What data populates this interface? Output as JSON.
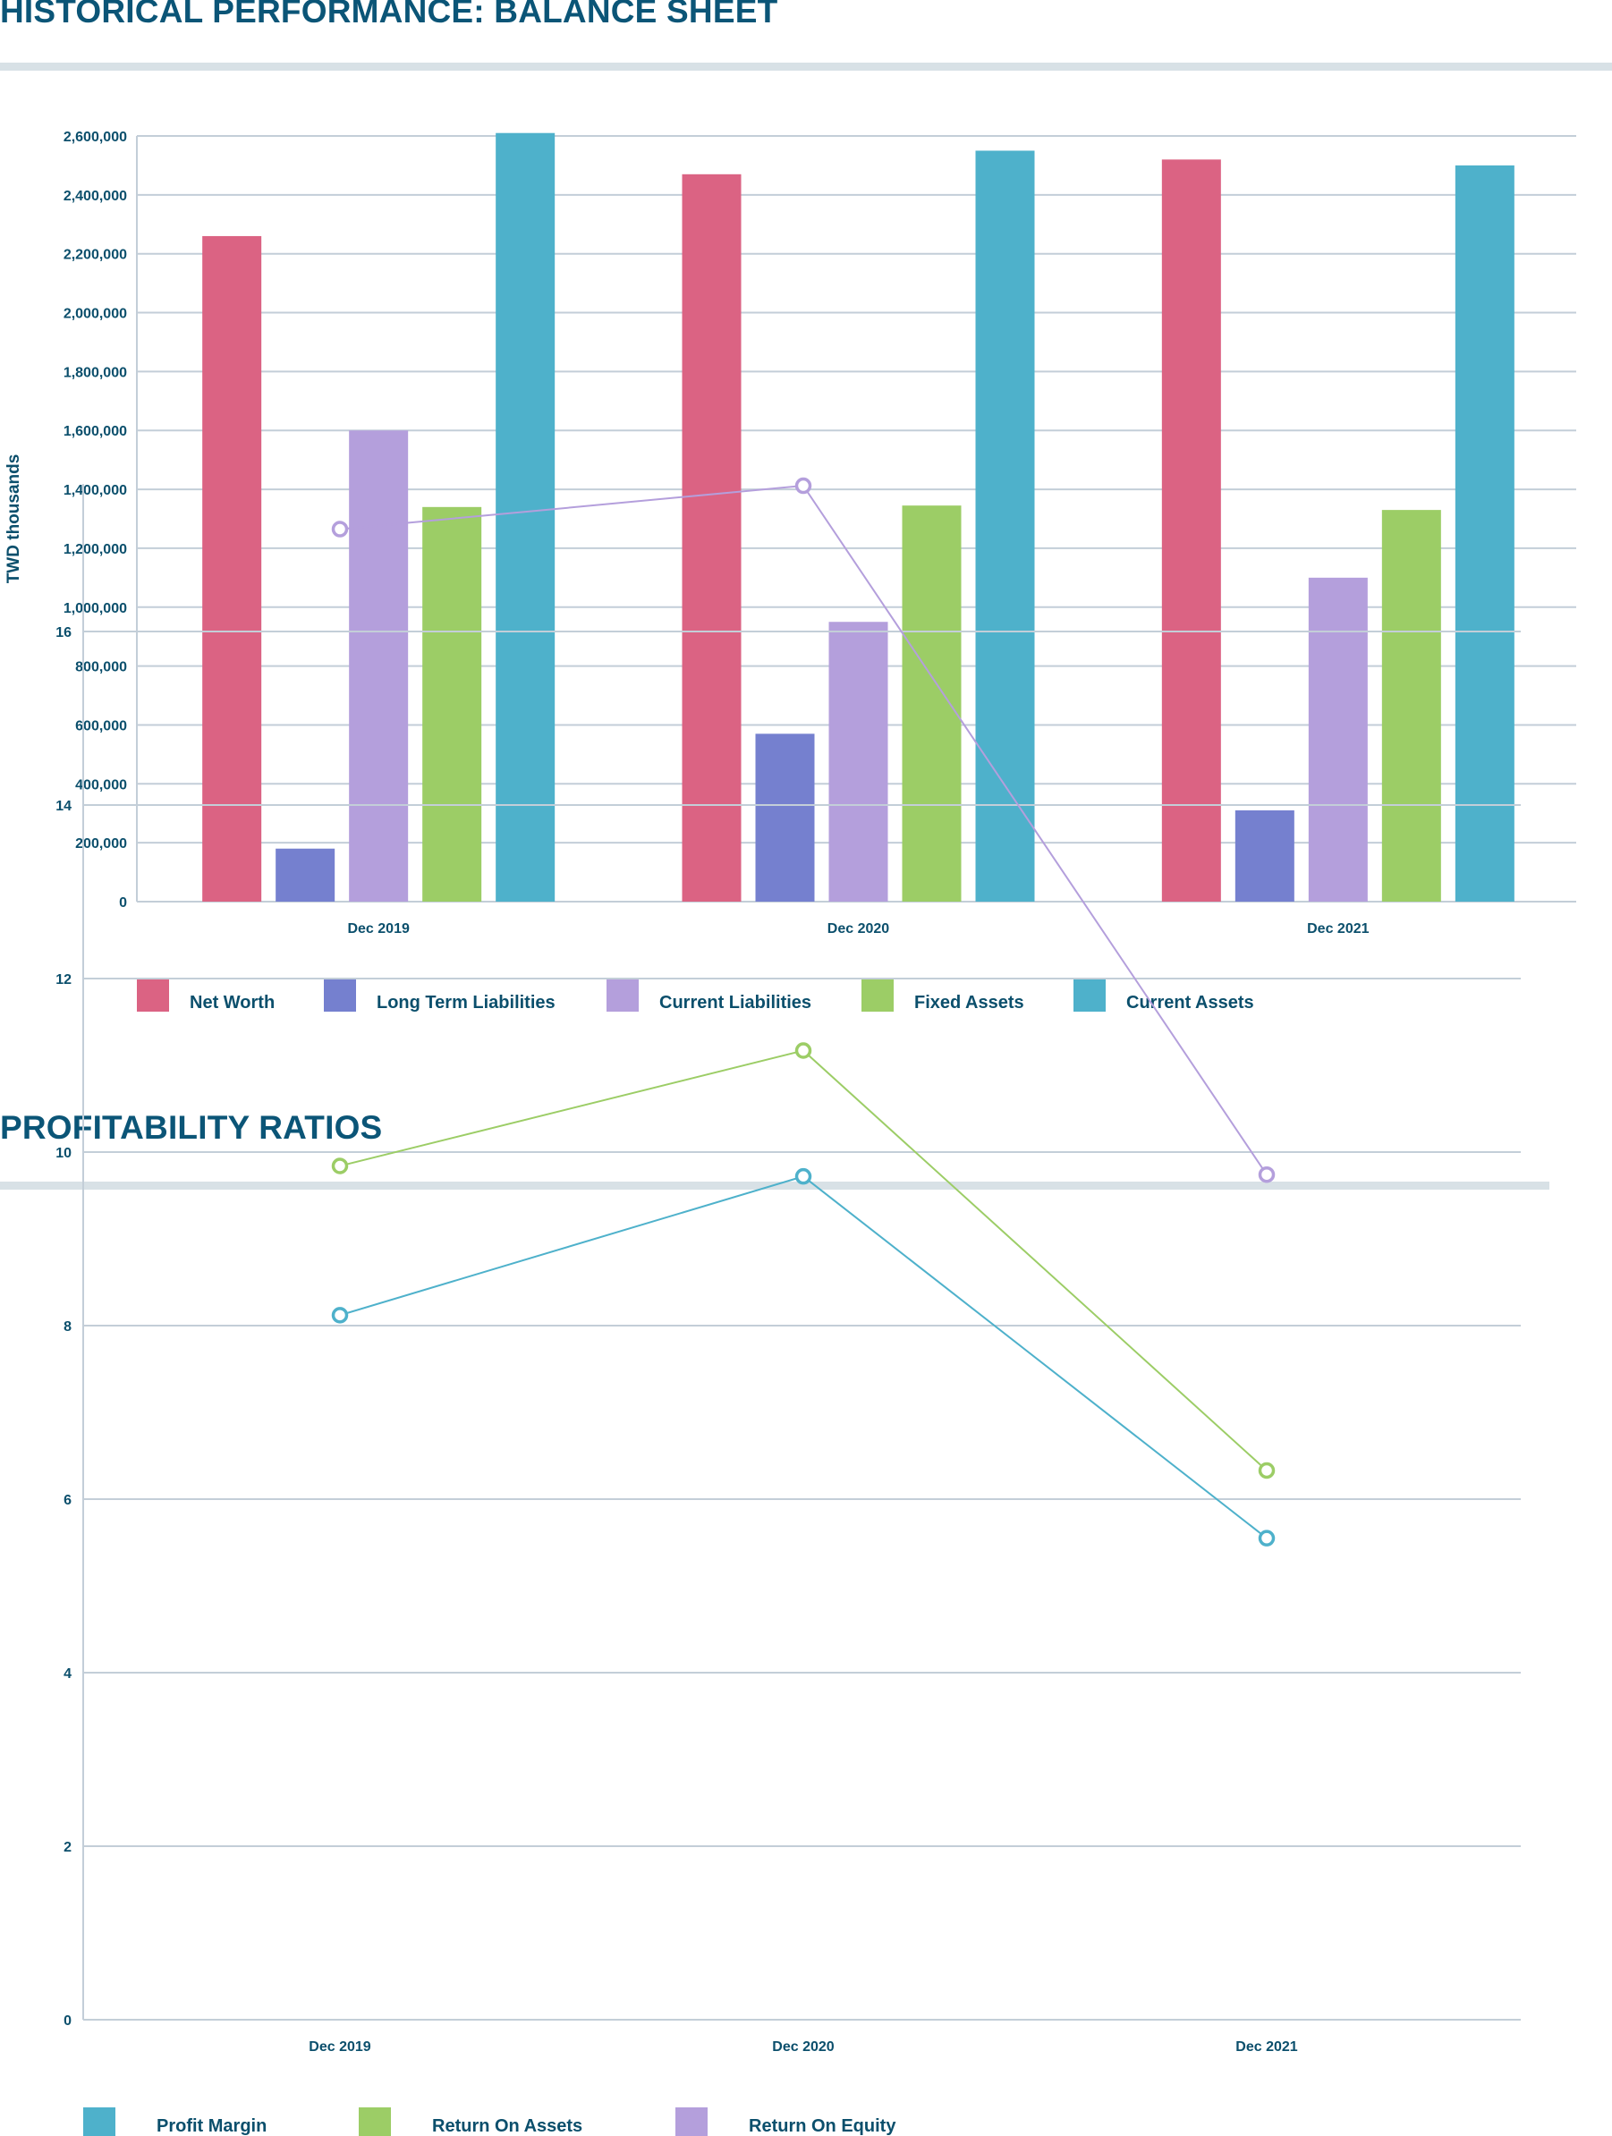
{
  "sections": {
    "balance": {
      "title": "HISTORICAL PERFORMANCE: BALANCE SHEET"
    },
    "profitability": {
      "title": "PROFITABILITY RATIOS"
    }
  },
  "chart_data": [
    {
      "type": "bar",
      "title": "",
      "xlabel": "",
      "ylabel": "TWD thousands",
      "ylim": [
        0,
        2600000
      ],
      "yticks": [
        0,
        200000,
        400000,
        600000,
        800000,
        1000000,
        1200000,
        1400000,
        1600000,
        1800000,
        2000000,
        2200000,
        2400000,
        2600000
      ],
      "ytick_labels": [
        "0",
        "200,000",
        "400,000",
        "600,000",
        "800,000",
        "1,000,000",
        "1,200,000",
        "1,400,000",
        "1,600,000",
        "1,800,000",
        "2,000,000",
        "2,200,000",
        "2,400,000",
        "2,600,000"
      ],
      "categories": [
        "Dec 2019",
        "Dec 2020",
        "Dec 2021"
      ],
      "grid": true,
      "legend_position": "bottom",
      "series": [
        {
          "name": "Net Worth",
          "color": "#db6383",
          "values": [
            2260000,
            2470000,
            2520000
          ]
        },
        {
          "name": "Long Term Liabilities",
          "color": "#7580cf",
          "values": [
            180000,
            570000,
            310000
          ]
        },
        {
          "name": "Current Liabilities",
          "color": "#b49fdc",
          "values": [
            1600000,
            950000,
            1100000
          ]
        },
        {
          "name": "Fixed Assets",
          "color": "#9ccd66",
          "values": [
            1340000,
            1345000,
            1330000
          ]
        },
        {
          "name": "Current Assets",
          "color": "#4eb1cb",
          "values": [
            2610000,
            2550000,
            2500000
          ]
        }
      ]
    },
    {
      "type": "line",
      "title": "",
      "xlabel": "",
      "ylabel": "",
      "ylim": [
        0,
        17.7
      ],
      "yticks": [
        0,
        2,
        4,
        6,
        8,
        10,
        12,
        14,
        16
      ],
      "ytick_labels": [
        "0",
        "2",
        "4",
        "6",
        "8",
        "10",
        "12",
        "14",
        "16"
      ],
      "categories": [
        "Dec 2019",
        "Dec 2020",
        "Dec 2021"
      ],
      "grid": true,
      "legend_position": "bottom",
      "series": [
        {
          "name": "Profit Margin",
          "color": "#4eb1cb",
          "values": [
            8.12,
            9.72,
            5.55
          ]
        },
        {
          "name": "Return On Assets",
          "color": "#9ccd66",
          "values": [
            9.84,
            11.17,
            6.33
          ]
        },
        {
          "name": "Return On Equity",
          "color": "#b49fdc",
          "values": [
            17.18,
            17.68,
            9.74
          ]
        }
      ]
    }
  ]
}
